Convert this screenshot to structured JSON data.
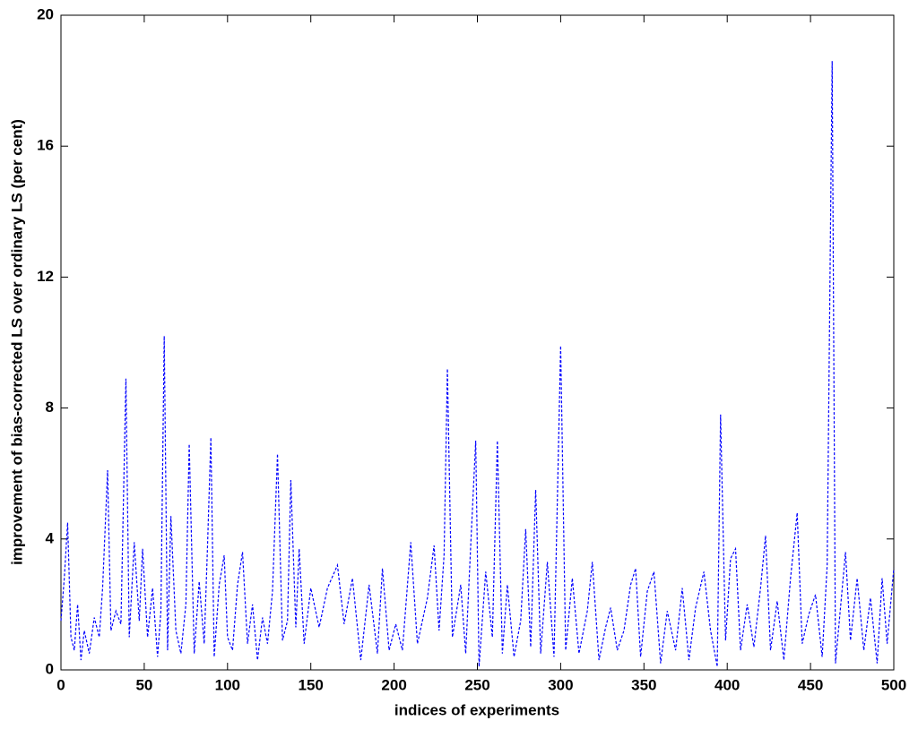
{
  "chart_data": {
    "type": "line",
    "x_label": "indices of experiments",
    "y_label": "improvement of bias-corrected LS over ordinary LS (per cent)",
    "x": [
      0,
      2,
      4,
      6,
      8,
      10,
      12,
      14,
      17,
      20,
      23,
      25,
      28,
      30,
      33,
      36,
      39,
      41,
      44,
      47,
      49,
      52,
      55,
      58,
      60,
      62,
      64,
      66,
      69,
      72,
      75,
      77,
      80,
      83,
      86,
      88,
      90,
      92,
      95,
      98,
      100,
      103,
      106,
      109,
      112,
      115,
      118,
      121,
      124,
      127,
      130,
      133,
      136,
      138,
      141,
      143,
      146,
      150,
      155,
      160,
      166,
      170,
      175,
      180,
      185,
      190,
      193,
      197,
      201,
      205,
      210,
      214,
      220,
      224,
      227,
      230,
      232,
      235,
      240,
      243,
      246,
      249,
      251,
      255,
      259,
      262,
      265,
      268,
      272,
      276,
      279,
      282,
      285,
      288,
      292,
      296,
      300,
      303,
      307,
      311,
      316,
      319,
      323,
      327,
      330,
      334,
      338,
      342,
      345,
      348,
      352,
      356,
      360,
      364,
      369,
      373,
      377,
      381,
      386,
      390,
      394,
      396,
      399,
      402,
      405,
      408,
      412,
      416,
      420,
      423,
      426,
      430,
      434,
      438,
      442,
      445,
      449,
      453,
      457,
      460,
      463,
      465,
      468,
      471,
      474,
      478,
      482,
      486,
      490,
      493,
      496,
      500
    ],
    "series": [
      {
        "color": "#0000ff",
        "line_style": "dashed",
        "values": [
          1.5,
          2.8,
          4.5,
          1.0,
          0.6,
          2.0,
          0.3,
          1.2,
          0.5,
          1.6,
          1.0,
          2.5,
          6.1,
          1.2,
          1.8,
          1.4,
          8.9,
          1.0,
          3.9,
          1.5,
          3.7,
          1.0,
          2.5,
          0.4,
          1.8,
          10.2,
          0.6,
          4.7,
          1.2,
          0.5,
          2.0,
          6.9,
          0.5,
          2.7,
          0.8,
          3.8,
          7.1,
          0.4,
          2.6,
          3.5,
          1.0,
          0.6,
          2.6,
          3.6,
          0.8,
          2.0,
          0.3,
          1.6,
          0.8,
          2.4,
          6.6,
          0.9,
          1.5,
          5.8,
          1.3,
          3.7,
          0.8,
          2.5,
          1.3,
          2.5,
          3.2,
          1.4,
          2.8,
          0.3,
          2.6,
          0.5,
          3.1,
          0.6,
          1.4,
          0.6,
          3.9,
          0.8,
          2.2,
          3.8,
          1.2,
          3.5,
          9.2,
          1.0,
          2.6,
          0.5,
          3.8,
          7.0,
          0.1,
          3.0,
          1.0,
          7.0,
          0.5,
          2.6,
          0.4,
          1.5,
          4.3,
          0.7,
          5.5,
          0.5,
          3.3,
          0.4,
          9.9,
          0.6,
          2.8,
          0.5,
          1.8,
          3.3,
          0.3,
          1.3,
          1.9,
          0.6,
          1.2,
          2.6,
          3.1,
          0.4,
          2.4,
          3.0,
          0.2,
          1.8,
          0.6,
          2.5,
          0.3,
          1.9,
          3.0,
          1.2,
          0.1,
          7.8,
          0.9,
          3.4,
          3.7,
          0.6,
          2.0,
          0.7,
          2.5,
          4.1,
          0.6,
          2.1,
          0.3,
          2.8,
          4.8,
          0.8,
          1.7,
          2.3,
          0.4,
          3.2,
          18.6,
          0.2,
          1.9,
          3.6,
          0.9,
          2.8,
          0.6,
          2.2,
          0.2,
          2.8,
          0.8,
          3.1
        ]
      }
    ],
    "xlim": [
      0,
      500
    ],
    "xticks": [
      0,
      50,
      100,
      150,
      200,
      250,
      300,
      350,
      400,
      450,
      500
    ],
    "ylim": [
      0,
      20
    ],
    "yticks": [
      0,
      4,
      8,
      12,
      16,
      20
    ]
  }
}
